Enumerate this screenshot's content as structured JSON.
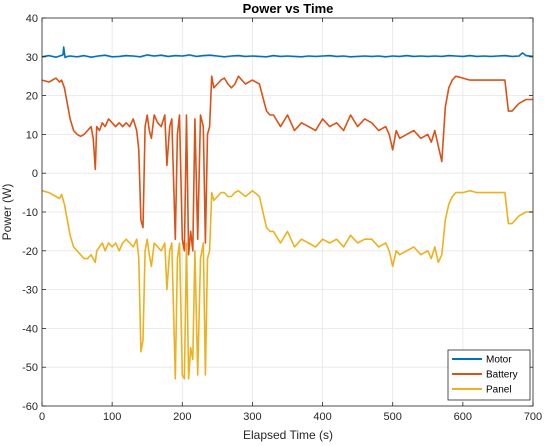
{
  "chart_data": {
    "type": "line",
    "title": "Power vs Time",
    "xlabel": "Elapsed Time (s)",
    "ylabel": "Power (W)",
    "xlim": [
      0,
      700
    ],
    "ylim": [
      -60,
      40
    ],
    "xticks": [
      0,
      100,
      200,
      300,
      400,
      500,
      600,
      700
    ],
    "yticks": [
      -60,
      -50,
      -40,
      -30,
      -20,
      -10,
      0,
      10,
      20,
      30,
      40
    ],
    "grid": true,
    "legend_position": "bottom-right",
    "series": [
      {
        "name": "Motor",
        "color": "#0072BD",
        "x": [
          0,
          10,
          20,
          25,
          30,
          31,
          33,
          36,
          40,
          50,
          60,
          70,
          80,
          90,
          100,
          110,
          120,
          130,
          140,
          150,
          160,
          170,
          180,
          190,
          200,
          210,
          220,
          230,
          240,
          250,
          260,
          270,
          280,
          290,
          300,
          310,
          320,
          330,
          340,
          350,
          360,
          370,
          380,
          390,
          400,
          410,
          420,
          430,
          440,
          450,
          460,
          470,
          480,
          490,
          500,
          510,
          520,
          530,
          540,
          550,
          560,
          570,
          580,
          590,
          600,
          610,
          620,
          630,
          640,
          650,
          660,
          670,
          680,
          685,
          690,
          700
        ],
        "y": [
          30,
          30.3,
          29.9,
          30.2,
          30.5,
          32.5,
          29.8,
          30.1,
          30.2,
          30,
          30.3,
          29.9,
          30.2,
          30.4,
          30,
          30.1,
          30.3,
          30.2,
          30,
          30.5,
          30.2,
          30.4,
          30.1,
          30.3,
          30.2,
          30.5,
          30.1,
          30.3,
          30.4,
          30.2,
          30,
          30.2,
          30.3,
          30.1,
          30.2,
          30.1,
          30,
          30.3,
          30.1,
          30.2,
          30.1,
          30,
          30.2,
          30.1,
          30.2,
          30.3,
          30.1,
          30.2,
          30,
          30.1,
          30.2,
          30.1,
          30.2,
          30,
          30.2,
          30.1,
          30.3,
          30.1,
          30.2,
          30.1,
          30.2,
          30.1,
          30.3,
          30.2,
          30.1,
          30.3,
          30.1,
          30.2,
          30.1,
          30.2,
          30.3,
          30.1,
          30.2,
          31,
          30.3,
          30.1
        ]
      },
      {
        "name": "Battery",
        "color": "#D95319",
        "x": [
          0,
          10,
          20,
          25,
          28,
          32,
          36,
          40,
          45,
          50,
          55,
          60,
          65,
          70,
          73,
          76,
          78,
          82,
          86,
          90,
          95,
          100,
          105,
          110,
          115,
          120,
          125,
          130,
          135,
          138,
          141,
          144,
          147,
          150,
          153,
          156,
          160,
          165,
          170,
          175,
          178,
          182,
          185,
          190,
          193,
          196,
          200,
          203,
          206,
          209,
          212,
          215,
          218,
          222,
          226,
          230,
          233,
          236,
          239,
          242,
          245,
          250,
          255,
          260,
          265,
          270,
          275,
          280,
          290,
          300,
          310,
          320,
          325,
          330,
          340,
          350,
          360,
          370,
          380,
          390,
          400,
          410,
          420,
          430,
          440,
          450,
          460,
          470,
          480,
          490,
          495,
          500,
          505,
          510,
          520,
          530,
          540,
          550,
          555,
          560,
          565,
          570,
          575,
          580,
          585,
          590,
          600,
          610,
          620,
          630,
          640,
          650,
          660,
          665,
          670,
          675,
          680,
          690,
          700
        ],
        "y": [
          24,
          23.5,
          24.5,
          23.5,
          24,
          22,
          18,
          14,
          11,
          10,
          9.5,
          10,
          11,
          12,
          9,
          1,
          12,
          11,
          13,
          12,
          14,
          13,
          12,
          13,
          12,
          13,
          12,
          14,
          11,
          6,
          -12,
          -14,
          12,
          15,
          11,
          9,
          15,
          13,
          12,
          15,
          2,
          12,
          14,
          -17,
          10,
          15,
          -17,
          -20,
          15,
          -21,
          -15,
          -20,
          14,
          -17,
          15,
          12,
          -18,
          10,
          12,
          25,
          22,
          23,
          24,
          24.5,
          23,
          22,
          23,
          25,
          23,
          24,
          23,
          16,
          15,
          15,
          12,
          15,
          11,
          13,
          12,
          11,
          14,
          12,
          13,
          11,
          15,
          12,
          14,
          13,
          11,
          12,
          10,
          6,
          11,
          9,
          10,
          11,
          9,
          10,
          8,
          11,
          7,
          3,
          17,
          22,
          24,
          25,
          24.5,
          24,
          24,
          24,
          24,
          24,
          24,
          16,
          16,
          17,
          18,
          19,
          19
        ]
      },
      {
        "name": "Panel",
        "color": "#EDB120",
        "x": [
          0,
          10,
          20,
          25,
          28,
          32,
          36,
          40,
          45,
          50,
          55,
          60,
          65,
          70,
          73,
          76,
          78,
          82,
          86,
          90,
          95,
          100,
          105,
          110,
          115,
          120,
          125,
          130,
          135,
          138,
          141,
          144,
          147,
          150,
          153,
          156,
          160,
          165,
          170,
          175,
          178,
          182,
          185,
          190,
          193,
          196,
          200,
          203,
          206,
          209,
          212,
          215,
          218,
          222,
          226,
          230,
          233,
          236,
          239,
          242,
          245,
          250,
          255,
          260,
          265,
          270,
          275,
          280,
          290,
          300,
          310,
          320,
          325,
          330,
          340,
          350,
          360,
          370,
          380,
          390,
          400,
          410,
          420,
          430,
          440,
          450,
          460,
          470,
          480,
          490,
          495,
          500,
          505,
          510,
          520,
          530,
          540,
          550,
          555,
          560,
          565,
          570,
          575,
          580,
          585,
          590,
          600,
          610,
          620,
          630,
          640,
          650,
          660,
          665,
          670,
          675,
          680,
          690,
          700
        ],
        "y": [
          -4.5,
          -5,
          -6,
          -6.5,
          -5.5,
          -8,
          -12,
          -16,
          -19,
          -20,
          -21,
          -22,
          -22,
          -21,
          -22,
          -23,
          -20,
          -19,
          -18,
          -20,
          -18,
          -19,
          -18,
          -20,
          -18,
          -17,
          -18,
          -19,
          -17,
          -22,
          -46,
          -43,
          -20,
          -17,
          -21,
          -24,
          -18,
          -19,
          -20,
          -18,
          -30,
          -20,
          -18,
          -53,
          -22,
          -18,
          -52,
          -53,
          -18,
          -53,
          -45,
          -48,
          -20,
          -52,
          -22,
          -18,
          -52,
          -22,
          -20,
          -5,
          -7,
          -6,
          -5,
          -5,
          -6,
          -6,
          -5,
          -4.5,
          -6,
          -4.5,
          -6,
          -14,
          -15,
          -15,
          -18,
          -15,
          -19,
          -17,
          -18,
          -19,
          -17,
          -18,
          -17,
          -19,
          -16,
          -18,
          -17,
          -17,
          -19,
          -18,
          -20,
          -24,
          -20,
          -21,
          -20,
          -19,
          -21,
          -20,
          -22,
          -19,
          -23,
          -21,
          -12,
          -8,
          -6,
          -5,
          -5,
          -4.5,
          -5,
          -5,
          -5,
          -5,
          -5,
          -13,
          -13,
          -12,
          -11,
          -10,
          -10
        ]
      }
    ]
  }
}
